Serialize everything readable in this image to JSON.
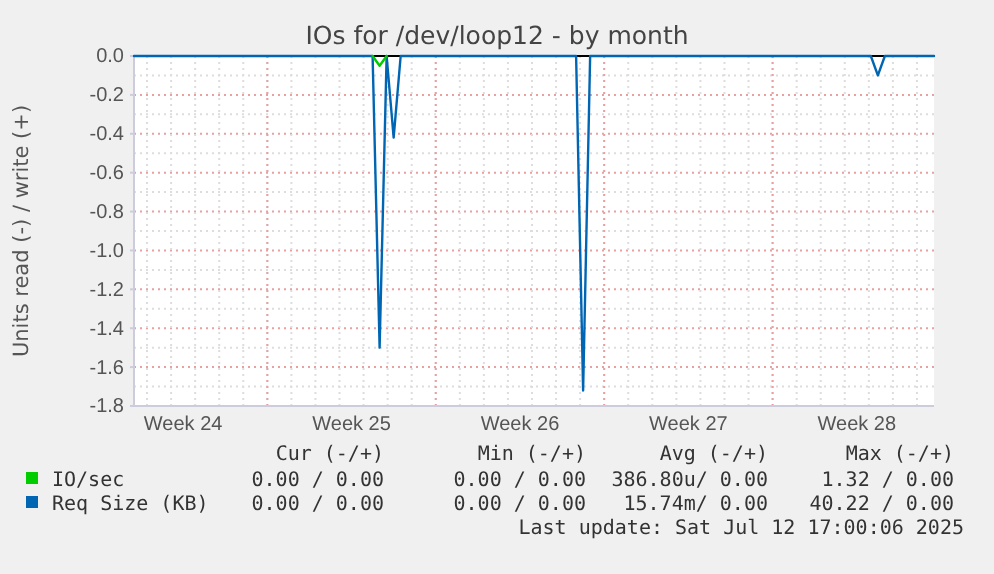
{
  "chart_data": {
    "type": "line",
    "title": "IOs for /dev/loop12 - by month",
    "ylabel": "Units read (-) / write (+)",
    "categories": [
      null,
      null,
      null,
      null,
      null,
      null,
      null,
      "Week 24",
      null,
      null,
      null,
      null,
      null,
      null,
      null,
      null,
      null,
      null,
      null,
      null,
      null,
      null,
      null,
      null,
      null,
      null,
      null,
      null,
      null,
      null,
      null,
      "Week 25",
      null,
      null,
      null,
      null,
      null,
      null,
      null,
      null,
      null,
      null,
      null,
      null,
      null,
      null,
      null,
      null,
      null,
      null,
      null,
      null,
      null,
      null,
      null,
      "Week 26",
      null,
      null,
      null,
      null,
      null,
      null,
      null,
      null,
      null,
      null,
      null,
      null,
      null,
      null,
      null,
      null,
      null,
      null,
      null,
      null,
      null,
      null,
      null,
      "Week 27",
      null,
      null,
      null,
      null,
      null,
      null,
      null,
      null,
      null,
      null,
      null,
      null,
      null,
      null,
      null,
      null,
      null,
      null,
      null,
      null,
      null,
      null,
      null,
      "Week 28",
      null,
      null,
      null,
      null,
      null,
      null,
      null,
      null,
      null,
      null,
      null
    ],
    "ylim": [
      -1.8,
      0
    ],
    "yticks": [
      {
        "value": -1.8,
        "label": "-1.8"
      },
      {
        "value": -1.6,
        "label": "-1.6"
      },
      {
        "value": -1.4,
        "label": "-1.4"
      },
      {
        "value": -1.2,
        "label": "-1.2"
      },
      {
        "value": -1.0,
        "label": "-1.0"
      },
      {
        "value": -0.8,
        "label": "-0.8"
      },
      {
        "value": -0.6,
        "label": "-0.6"
      },
      {
        "value": -0.4,
        "label": "-0.4"
      },
      {
        "value": -0.2,
        "label": "-0.2"
      },
      {
        "value": 0,
        "label": "0.0"
      }
    ],
    "grid": true,
    "legend": "bottom",
    "marker": "none",
    "line_style": "solid",
    "ref_lines": [
      {
        "axis": "y",
        "value": 0,
        "color": "#000000"
      }
    ],
    "series": [
      {
        "name": "IO/sec",
        "color": "#00cc00",
        "values": [
          null,
          null,
          null,
          null,
          null,
          null,
          null,
          null,
          null,
          null,
          null,
          null,
          null,
          null,
          null,
          null,
          null,
          null,
          null,
          null,
          null,
          null,
          null,
          null,
          null,
          null,
          null,
          null,
          null,
          null,
          null,
          null,
          null,
          null,
          0,
          -0.05,
          0,
          null,
          null,
          null,
          null,
          null,
          null,
          null,
          null,
          null,
          null,
          null,
          null,
          null,
          null,
          null,
          null,
          null,
          null,
          null,
          null,
          null,
          null,
          null,
          null,
          null,
          null,
          null,
          null,
          null,
          null,
          null,
          null,
          null,
          null,
          null,
          null,
          null,
          null,
          null,
          null,
          null,
          null,
          null,
          null,
          null,
          null,
          null,
          null,
          null,
          null,
          null,
          null,
          null,
          null,
          null,
          null,
          null,
          null,
          null,
          null,
          null,
          null,
          null,
          null,
          null,
          null,
          null,
          null,
          null,
          null,
          null,
          null,
          null,
          null,
          null,
          null,
          null,
          null
        ]
      },
      {
        "name": "Req Size (KB)",
        "color": "#0066b3",
        "values": [
          0,
          0,
          0,
          0,
          0,
          0,
          0,
          0,
          0,
          0,
          0,
          0,
          0,
          0,
          0,
          0,
          0,
          0,
          0,
          0,
          0,
          0,
          0,
          0,
          0,
          0,
          0,
          0,
          0,
          0,
          0,
          0,
          0,
          0,
          0,
          -1.5,
          0,
          -0.42,
          0,
          0,
          0,
          0,
          0,
          0,
          0,
          0,
          0,
          0,
          0,
          0,
          0,
          0,
          0,
          0,
          0,
          0,
          0,
          0,
          0,
          0,
          0,
          0,
          0,
          0,
          -1.72,
          0,
          0,
          0,
          0,
          0,
          0,
          0,
          0,
          0,
          0,
          0,
          0,
          0,
          0,
          0,
          0,
          0,
          0,
          0,
          0,
          0,
          0,
          0,
          0,
          0,
          0,
          0,
          0,
          0,
          0,
          0,
          0,
          0,
          0,
          0,
          0,
          0,
          0,
          0,
          0,
          0,
          -0.1,
          0,
          0,
          0,
          0,
          0,
          0,
          0,
          0
        ]
      }
    ],
    "annotations": [
      "Cur (-/+)",
      "Min (-/+)",
      "Avg (-/+)",
      "Max (-/+)",
      "0.00 / 0.00",
      "0.00 / 0.00",
      "386.80u/ 0.00",
      "1.32 / 0.00",
      "0.00 / 0.00",
      "0.00 / 0.00",
      "15.74m/ 0.00",
      "40.22 / 0.00",
      "Last update: Sat Jul 12 17:00:06 2025"
    ]
  }
}
